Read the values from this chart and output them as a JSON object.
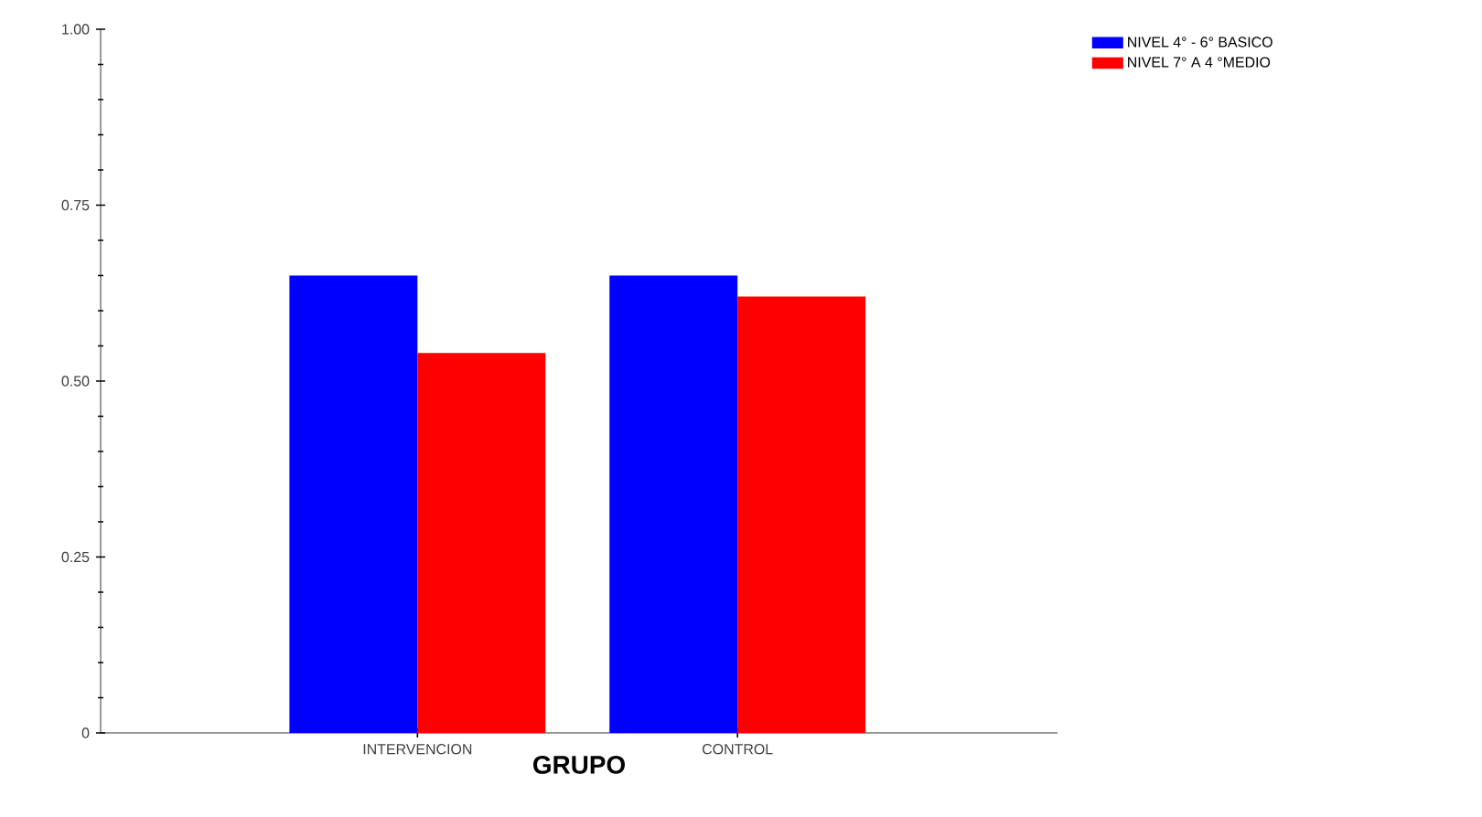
{
  "chart_data": {
    "type": "bar",
    "xlabel": "GRUPO",
    "categories": [
      "INTERVENCION",
      "CONTROL"
    ],
    "series": [
      {
        "name": "NIVEL 4° - 6° BASICO",
        "color": "#0000ff",
        "values": [
          0.65,
          0.65
        ]
      },
      {
        "name": "NIVEL 7° A 4 °MEDIO",
        "color": "#ff0000",
        "values": [
          0.54,
          0.62
        ]
      }
    ],
    "ylim": [
      0,
      1
    ],
    "yticks": [
      {
        "value": 0,
        "label": "0"
      },
      {
        "value": 0.05,
        "label": null
      },
      {
        "value": 0.1,
        "label": null
      },
      {
        "value": 0.15,
        "label": null
      },
      {
        "value": 0.2,
        "label": null
      },
      {
        "value": 0.25,
        "label": "0.25"
      },
      {
        "value": 0.3,
        "label": null
      },
      {
        "value": 0.35,
        "label": null
      },
      {
        "value": 0.4,
        "label": null
      },
      {
        "value": 0.45,
        "label": null
      },
      {
        "value": 0.5,
        "label": "0.50"
      },
      {
        "value": 0.55,
        "label": null
      },
      {
        "value": 0.6,
        "label": null
      },
      {
        "value": 0.65,
        "label": null
      },
      {
        "value": 0.7,
        "label": null
      },
      {
        "value": 0.75,
        "label": "0.75"
      },
      {
        "value": 0.8,
        "label": null
      },
      {
        "value": 0.85,
        "label": null
      },
      {
        "value": 0.9,
        "label": null
      },
      {
        "value": 0.95,
        "label": null
      },
      {
        "value": 1,
        "label": "1.00"
      }
    ],
    "grid": false,
    "legend": "top right"
  }
}
